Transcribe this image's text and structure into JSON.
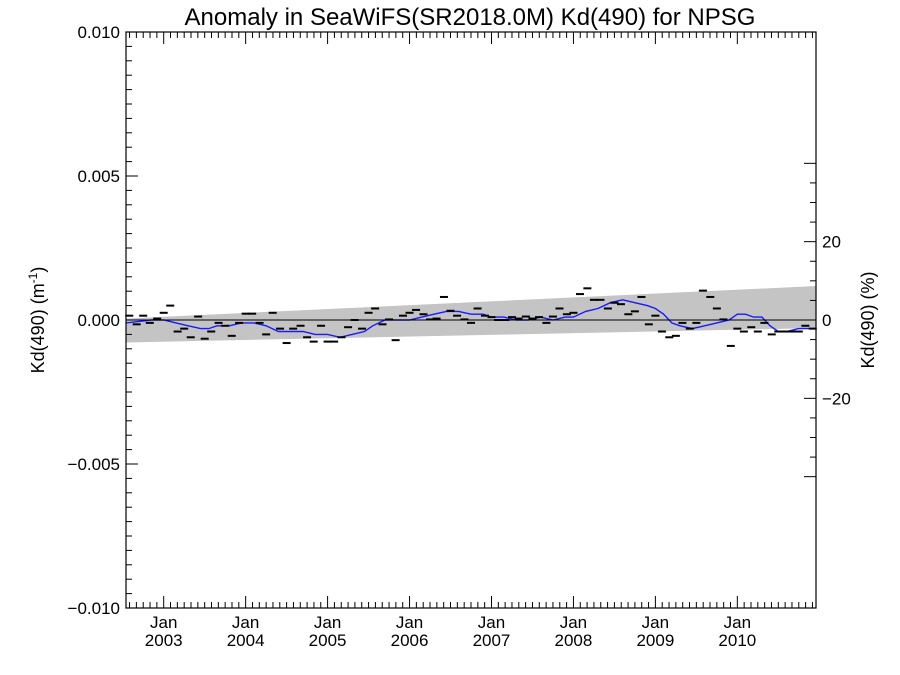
{
  "chart_data": {
    "type": "line",
    "title": "Anomaly in SeaWiFS(SR2018.0M) Kd(490) for NPSG",
    "ylabel_left": "Kd(490) (m",
    "ylabel_left_sup": "-1",
    "ylabel_left_close": ")",
    "ylabel_right": "Kd(490) (%)",
    "xlim": [
      2002.54,
      2010.96
    ],
    "ylim": [
      -0.01,
      0.01
    ],
    "y_ticks_left": [
      {
        "value": 0.01,
        "label": "0.010"
      },
      {
        "value": 0.005,
        "label": "0.005"
      },
      {
        "value": 0.0,
        "label": "0.000"
      },
      {
        "value": -0.005,
        "label": "−0.005"
      },
      {
        "value": -0.01,
        "label": "−0.010"
      }
    ],
    "y_ticks_right": [
      {
        "value": 0.00272,
        "label": "20"
      },
      {
        "value": 0.0,
        "label": "0"
      },
      {
        "value": -0.00272,
        "label": "−20"
      }
    ],
    "x_ticks": [
      {
        "value": 2003.0,
        "month": "Jan",
        "year": "2003"
      },
      {
        "value": 2004.0,
        "month": "Jan",
        "year": "2004"
      },
      {
        "value": 2005.0,
        "month": "Jan",
        "year": "2005"
      },
      {
        "value": 2006.0,
        "month": "Jan",
        "year": "2006"
      },
      {
        "value": 2007.0,
        "month": "Jan",
        "year": "2007"
      },
      {
        "value": 2008.0,
        "month": "Jan",
        "year": "2008"
      },
      {
        "value": 2009.0,
        "month": "Jan",
        "year": "2009"
      },
      {
        "value": 2010.0,
        "month": "Jan",
        "year": "2010"
      }
    ],
    "confidence_band": {
      "x": [
        2002.54,
        2010.96
      ],
      "upper": [
        5e-05,
        0.00118
      ],
      "lower": [
        -0.00078,
        -0.00028
      ]
    },
    "monthly_anomalies": {
      "x": [
        2002.58,
        2002.67,
        2002.75,
        2002.83,
        2002.92,
        2003.0,
        2003.08,
        2003.17,
        2003.25,
        2003.33,
        2003.42,
        2003.5,
        2003.58,
        2003.67,
        2003.75,
        2003.83,
        2003.92,
        2004.0,
        2004.08,
        2004.17,
        2004.25,
        2004.33,
        2004.42,
        2004.5,
        2004.58,
        2004.67,
        2004.75,
        2004.83,
        2004.92,
        2005.0,
        2005.08,
        2005.17,
        2005.25,
        2005.33,
        2005.42,
        2005.5,
        2005.58,
        2005.67,
        2005.75,
        2005.83,
        2005.92,
        2006.0,
        2006.08,
        2006.17,
        2006.25,
        2006.33,
        2006.42,
        2006.5,
        2006.58,
        2006.67,
        2006.75,
        2006.83,
        2006.92,
        2007.0,
        2007.08,
        2007.17,
        2007.25,
        2007.33,
        2007.42,
        2007.5,
        2007.58,
        2007.67,
        2007.75,
        2007.83,
        2007.92,
        2008.0,
        2008.08,
        2008.17,
        2008.25,
        2008.33,
        2008.42,
        2008.5,
        2008.58,
        2008.67,
        2008.75,
        2008.83,
        2008.92,
        2009.0,
        2009.08,
        2009.17,
        2009.25,
        2009.33,
        2009.42,
        2009.5,
        2009.58,
        2009.67,
        2009.75,
        2009.83,
        2009.92,
        2010.0,
        2010.08,
        2010.17,
        2010.25,
        2010.33,
        2010.42,
        2010.5,
        2010.58,
        2010.67,
        2010.75,
        2010.83,
        2010.92
      ],
      "y": [
        0.00015,
        -0.00015,
        0.00015,
        -0.0001,
        5e-05,
        0.00025,
        0.0005,
        -0.0004,
        -0.0003,
        -0.0006,
        0.00012,
        -0.00065,
        -0.0004,
        -0.0001,
        -0.0002,
        -0.00055,
        -0.0001,
        0.00022,
        0.00022,
        -0.0001,
        -0.0005,
        0.00025,
        -0.0003,
        -0.0008,
        -0.0003,
        -0.0002,
        -0.0006,
        -0.00075,
        -0.0002,
        -0.00075,
        -0.00075,
        -0.0006,
        -0.00025,
        0.0,
        -0.0003,
        0.00025,
        0.0004,
        -0.00015,
        2e-05,
        -0.0007,
        0.00015,
        0.00025,
        0.00035,
        0.0002,
        2e-05,
        5e-05,
        0.0008,
        0.00032,
        0.00015,
        2e-05,
        -0.0001,
        0.0004,
        0.00015,
        0.0001,
        0.0,
        0.0,
        0.0001,
        5e-05,
        0.00012,
        5e-05,
        0.0001,
        -0.0001,
        0.00012,
        0.0004,
        0.0002,
        0.00025,
        0.0009,
        0.0011,
        0.0007,
        0.0007,
        0.0004,
        0.0006,
        0.00055,
        0.0002,
        0.0003,
        0.0008,
        -0.00015,
        0.00015,
        -0.0004,
        -0.0006,
        -0.00055,
        -0.0001,
        -0.0003,
        -0.0001,
        0.00102,
        0.0008,
        0.0004,
        2e-05,
        -0.0009,
        -0.0003,
        -0.0004,
        -0.00025,
        -0.0004,
        -0.0001,
        -0.0005,
        -0.0004,
        -0.0004,
        -0.0004,
        -0.0004,
        -0.0002,
        -0.0003
      ],
      "color": "#000000"
    },
    "running_mean": {
      "x": [
        2002.54,
        2002.7,
        2002.85,
        2003.0,
        2003.15,
        2003.3,
        2003.45,
        2003.55,
        2003.65,
        2003.8,
        2003.95,
        2004.1,
        2004.25,
        2004.4,
        2004.55,
        2004.7,
        2004.85,
        2005.0,
        2005.15,
        2005.3,
        2005.45,
        2005.55,
        2005.7,
        2005.85,
        2006.0,
        2006.15,
        2006.3,
        2006.45,
        2006.6,
        2006.75,
        2006.9,
        2007.0,
        2007.15,
        2007.3,
        2007.45,
        2007.6,
        2007.75,
        2007.9,
        2008.0,
        2008.15,
        2008.3,
        2008.45,
        2008.6,
        2008.75,
        2008.9,
        2009.0,
        2009.1,
        2009.2,
        2009.3,
        2009.45,
        2009.6,
        2009.75,
        2009.9,
        2010.0,
        2010.1,
        2010.2,
        2010.3,
        2010.4,
        2010.5,
        2010.6,
        2010.75,
        2010.96
      ],
      "y": [
        -0.0001,
        -5e-05,
        0.0,
        0.0,
        -0.0001,
        -0.0002,
        -0.0003,
        -0.0003,
        -0.0002,
        -0.0002,
        -0.0001,
        -0.0001,
        -0.0002,
        -0.0004,
        -0.0004,
        -0.0004,
        -0.0005,
        -0.0005,
        -0.0006,
        -0.0005,
        -0.0004,
        -0.0002,
        0.0,
        0.0,
        0.0,
        0.0001,
        0.0002,
        0.0003,
        0.0003,
        0.0002,
        0.0002,
        0.0001,
        0.0001,
        0.0,
        0.0,
        0.0001,
        0.0,
        0.0001,
        0.0001,
        0.0003,
        0.0004,
        0.0006,
        0.0007,
        0.0006,
        0.0005,
        0.0004,
        0.0002,
        -0.0001,
        -0.0002,
        -0.0003,
        -0.0002,
        -0.0001,
        0.0,
        0.0002,
        0.0002,
        0.0001,
        0.0001,
        -0.0002,
        -0.0004,
        -0.0004,
        -0.0003,
        -0.0003
      ],
      "color": "#1a1aff"
    },
    "zero_line_color": "#000000",
    "band_color": "#c4c4c4",
    "grid": false
  }
}
